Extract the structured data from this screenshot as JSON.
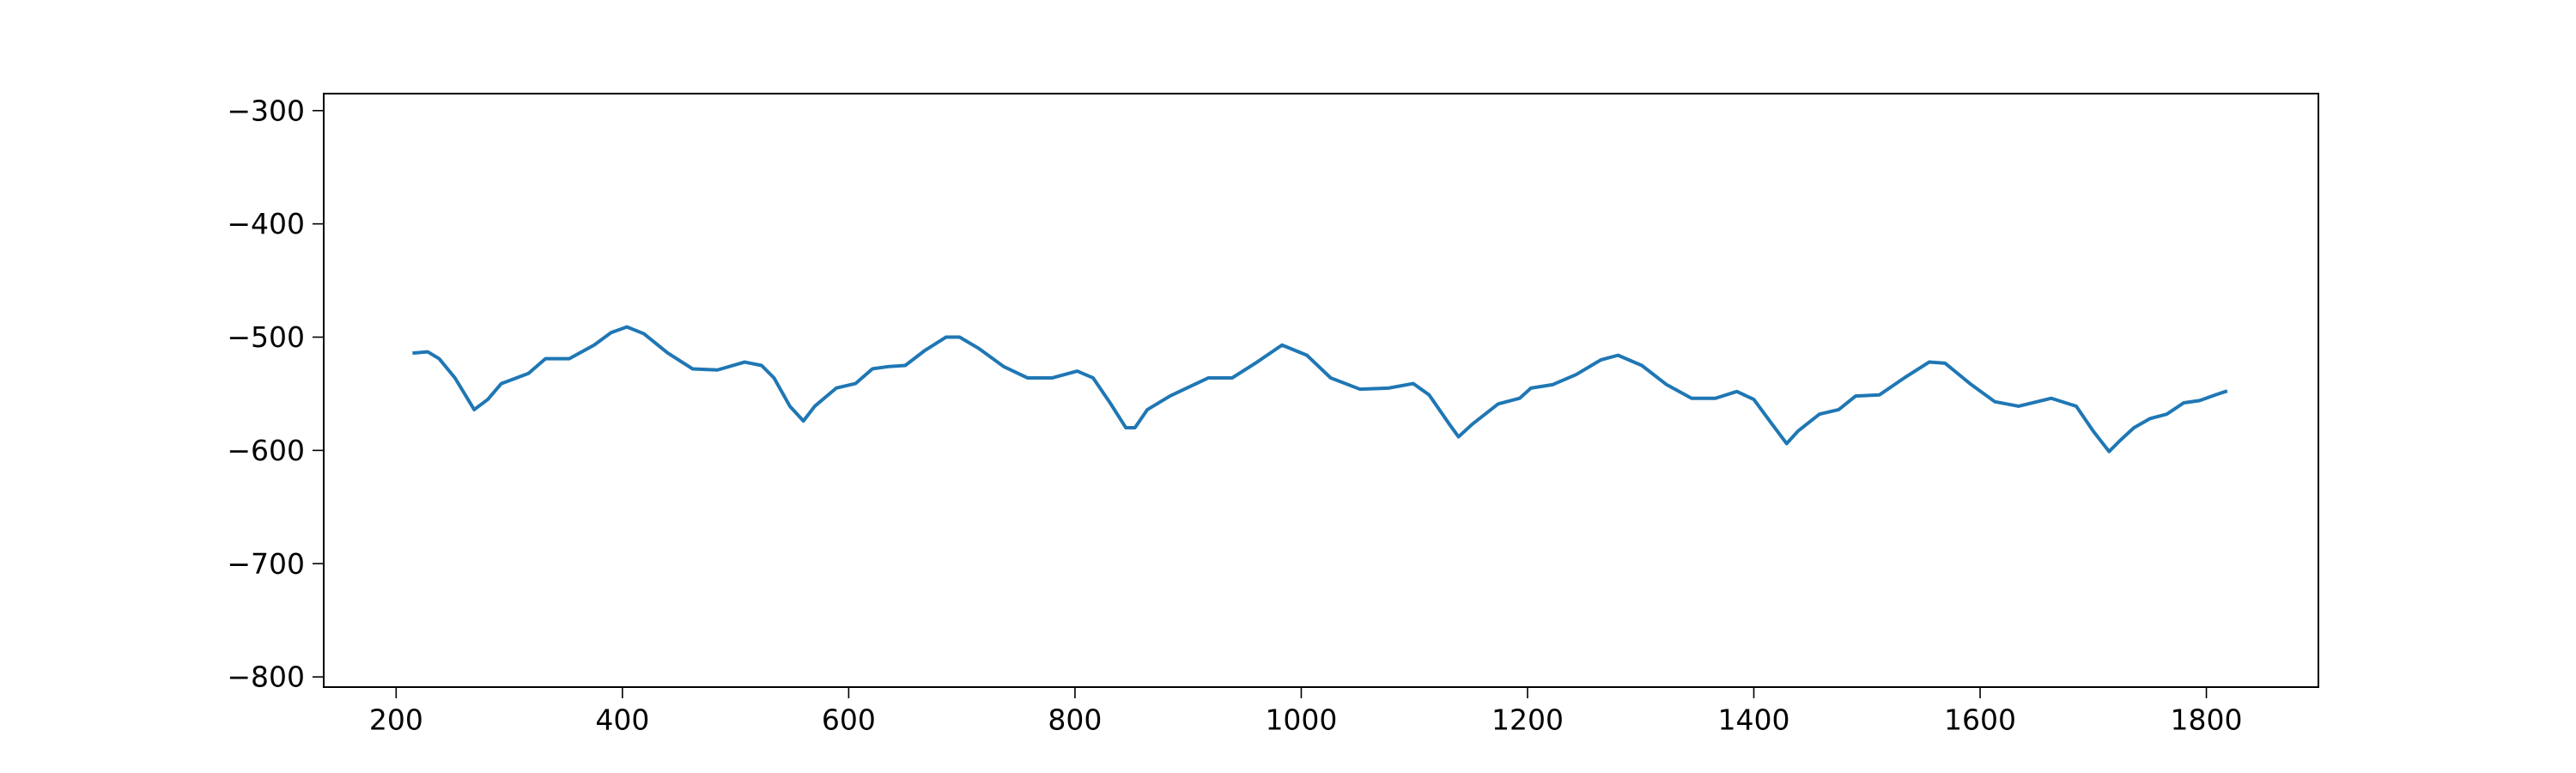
{
  "chart_data": {
    "type": "line",
    "color": "#1f77b4",
    "x": [
      216,
      228,
      238,
      252,
      269,
      281,
      293,
      317,
      332,
      353,
      375,
      390,
      404,
      419,
      440,
      462,
      484,
      508,
      523,
      534,
      548,
      560,
      570,
      589,
      606,
      621,
      635,
      650,
      667,
      686,
      698,
      715,
      737,
      758,
      780,
      802,
      816,
      831,
      845,
      853,
      864,
      884,
      903,
      918,
      939,
      961,
      983,
      1005,
      1026,
      1052,
      1077,
      1099,
      1113,
      1131,
      1139,
      1151,
      1174,
      1193,
      1203,
      1222,
      1243,
      1265,
      1280,
      1301,
      1323,
      1345,
      1366,
      1385,
      1400,
      1414,
      1429,
      1439,
      1458,
      1475,
      1490,
      1511,
      1533,
      1555,
      1569,
      1591,
      1613,
      1634,
      1663,
      1685,
      1700,
      1714,
      1724,
      1736,
      1750,
      1765,
      1780,
      1794,
      1808,
      1817
    ],
    "values": [
      -514,
      -513,
      -519,
      -536,
      -564,
      -555,
      -541,
      -532,
      -519,
      -519,
      -507,
      -496,
      -491,
      -497,
      -514,
      -528,
      -529,
      -522,
      -525,
      -536,
      -561,
      -574,
      -561,
      -545,
      -541,
      -528,
      -526,
      -525,
      -512,
      -500,
      -500,
      -510,
      -526,
      -536,
      -536,
      -530,
      -536,
      -558,
      -580,
      -580,
      -564,
      -552,
      -543,
      -536,
      -536,
      -522,
      -507,
      -516,
      -536,
      -546,
      -545,
      -541,
      -551,
      -577,
      -588,
      -577,
      -559,
      -554,
      -545,
      -542,
      -533,
      -520,
      -516,
      -525,
      -542,
      -554,
      -554,
      -548,
      -555,
      -574,
      -594,
      -583,
      -568,
      -564,
      -552,
      -551,
      -536,
      -522,
      -523,
      -541,
      -557,
      -561,
      -554,
      -561,
      -583,
      -601,
      -591,
      -580,
      -572,
      -568,
      -558,
      -556,
      -551,
      -548
    ],
    "xlim": [
      136,
      1899
    ],
    "xticks": [
      200,
      400,
      600,
      800,
      1000,
      1200,
      1400,
      1600,
      1800
    ],
    "ylim": [
      -809,
      -285
    ],
    "yticks": [
      {
        "value": -300,
        "label": "−300"
      },
      {
        "value": -400,
        "label": "−400"
      },
      {
        "value": -500,
        "label": "−500"
      },
      {
        "value": -600,
        "label": "−600"
      },
      {
        "value": -700,
        "label": "−700"
      },
      {
        "value": -800,
        "label": "−800"
      }
    ]
  }
}
